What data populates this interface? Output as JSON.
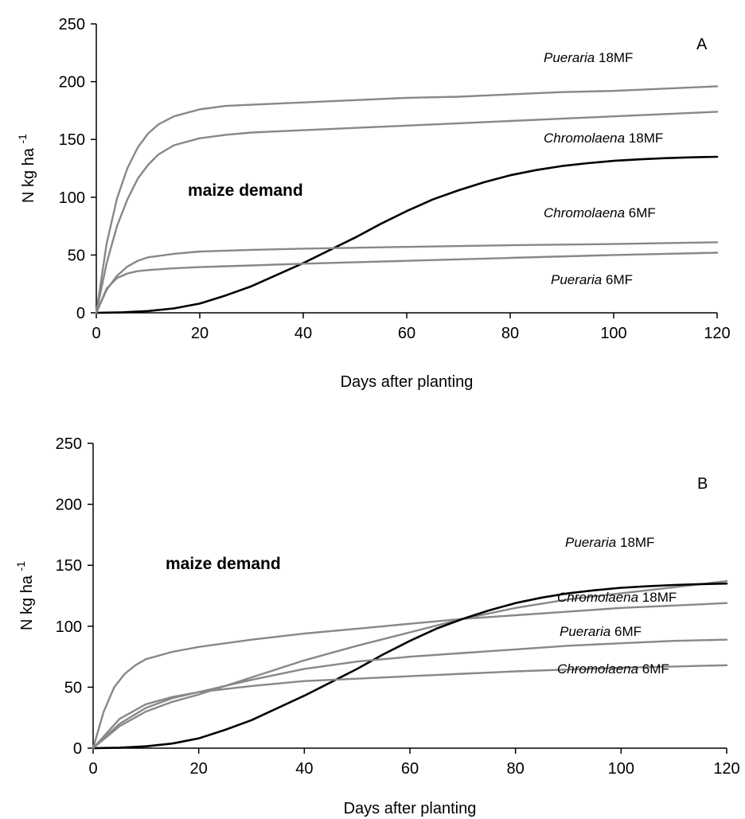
{
  "chart_data": [
    {
      "type": "line",
      "panel_label": "A",
      "xlabel": "Days after planting",
      "ylabel": "N kg ha",
      "ylabel_sup": "-1",
      "xlim": [
        0,
        120
      ],
      "ylim": [
        0,
        250
      ],
      "xticks": [
        0,
        20,
        40,
        60,
        80,
        100,
        120
      ],
      "yticks": [
        0,
        50,
        100,
        150,
        200,
        250
      ],
      "grid": false,
      "series": [
        {
          "name": "Pueraria 18MF",
          "color": "#888888",
          "label_italic": "Pueraria",
          "label_rest": "18MF",
          "x": [
            0,
            2,
            4,
            6,
            8,
            10,
            12,
            15,
            20,
            25,
            30,
            40,
            50,
            60,
            70,
            80,
            90,
            100,
            110,
            120
          ],
          "y": [
            0,
            60,
            99,
            125,
            143,
            155,
            163,
            170,
            176,
            179,
            180,
            182,
            184,
            186,
            187,
            189,
            191,
            192,
            194,
            196
          ]
        },
        {
          "name": "Chromolaena 18MF",
          "color": "#888888",
          "label_italic": "Chromolaena",
          "label_rest": "18MF",
          "x": [
            0,
            2,
            4,
            6,
            8,
            10,
            12,
            15,
            20,
            25,
            30,
            40,
            50,
            60,
            70,
            80,
            90,
            100,
            110,
            120
          ],
          "y": [
            0,
            43,
            75,
            98,
            116,
            128,
            137,
            145,
            151,
            154,
            156,
            158,
            160,
            162,
            164,
            166,
            168,
            170,
            172,
            174
          ]
        },
        {
          "name": "maize demand",
          "color": "#000000",
          "label_bold": "maize demand",
          "x": [
            0,
            5,
            10,
            15,
            20,
            25,
            30,
            35,
            40,
            45,
            50,
            55,
            60,
            65,
            70,
            75,
            80,
            85,
            90,
            95,
            100,
            105,
            110,
            115,
            120
          ],
          "y": [
            0,
            0.4,
            1.5,
            3.8,
            8,
            15,
            23,
            33,
            43,
            54,
            65,
            77,
            88,
            98,
            106,
            113,
            119,
            123.5,
            127,
            129.5,
            131.5,
            132.8,
            133.8,
            134.5,
            135
          ]
        },
        {
          "name": "Chromolaena 6MF",
          "color": "#888888",
          "label_italic": "Chromolaena",
          "label_rest": "6MF",
          "x": [
            0,
            2,
            4,
            6,
            8,
            10,
            15,
            20,
            30,
            40,
            60,
            80,
            100,
            120
          ],
          "y": [
            0,
            20,
            32,
            40,
            45,
            48,
            51,
            53,
            54.5,
            55.5,
            57,
            58.5,
            59.5,
            61
          ]
        },
        {
          "name": "Pueraria 6MF",
          "color": "#888888",
          "label_italic": "Pueraria",
          "label_rest": "6MF",
          "x": [
            0,
            2,
            4,
            6,
            8,
            10,
            15,
            20,
            30,
            40,
            60,
            80,
            100,
            120
          ],
          "y": [
            0,
            21,
            30,
            34,
            36,
            37,
            38.5,
            39.5,
            41,
            42.5,
            45,
            47.5,
            50,
            52
          ]
        }
      ],
      "annotations": {
        "maize_demand": "maize demand"
      }
    },
    {
      "type": "line",
      "panel_label": "B",
      "xlabel": "Days after planting",
      "ylabel": "N kg ha",
      "ylabel_sup": "-1",
      "xlim": [
        0,
        120
      ],
      "ylim": [
        0,
        250
      ],
      "xticks": [
        0,
        20,
        40,
        60,
        80,
        100,
        120
      ],
      "yticks": [
        0,
        50,
        100,
        150,
        200,
        250
      ],
      "grid": false,
      "series": [
        {
          "name": "Pueraria 18MF",
          "color": "#888888",
          "label_italic": "Pueraria",
          "label_rest": "18MF",
          "x": [
            0,
            5,
            10,
            15,
            20,
            25,
            30,
            40,
            50,
            60,
            70,
            80,
            90,
            100,
            110,
            120
          ],
          "y": [
            0,
            18,
            30,
            38,
            44,
            51,
            58,
            72,
            84,
            95,
            106,
            115,
            122,
            127,
            132,
            137
          ]
        },
        {
          "name": "Chromolaena 18MF",
          "color": "#888888",
          "label_italic": "Chromolaena",
          "label_rest": "18MF",
          "x": [
            0,
            2,
            4,
            6,
            8,
            10,
            15,
            20,
            30,
            40,
            50,
            60,
            70,
            80,
            90,
            100,
            110,
            120
          ],
          "y": [
            0,
            30,
            50,
            61,
            68,
            73,
            79,
            83,
            89,
            94,
            98,
            102,
            106,
            109,
            112,
            115,
            117,
            119
          ]
        },
        {
          "name": "maize demand",
          "color": "#000000",
          "label_bold": "maize demand",
          "x": [
            0,
            5,
            10,
            15,
            20,
            25,
            30,
            35,
            40,
            45,
            50,
            55,
            60,
            65,
            70,
            75,
            80,
            85,
            90,
            95,
            100,
            105,
            110,
            115,
            120
          ],
          "y": [
            0,
            0.4,
            1.5,
            3.8,
            8,
            15,
            23,
            33,
            43,
            54,
            65,
            77,
            88,
            98,
            106,
            113,
            119,
            123.5,
            127,
            129.5,
            131.5,
            132.8,
            133.8,
            134.5,
            135
          ]
        },
        {
          "name": "Pueraria 6MF",
          "color": "#888888",
          "label_italic": "Pueraria",
          "label_rest": "6MF",
          "x": [
            0,
            5,
            10,
            15,
            20,
            30,
            40,
            50,
            60,
            70,
            80,
            90,
            100,
            110,
            120
          ],
          "y": [
            0,
            20,
            33,
            41,
            46,
            56,
            65,
            71,
            75,
            78,
            81,
            84,
            86,
            88,
            89
          ]
        },
        {
          "name": "Chromolaena 6MF",
          "color": "#888888",
          "label_italic": "Chromolaena",
          "label_rest": "6MF",
          "x": [
            0,
            5,
            10,
            15,
            20,
            30,
            40,
            50,
            60,
            70,
            80,
            90,
            100,
            110,
            120
          ],
          "y": [
            0,
            24,
            36,
            42,
            46,
            51,
            55,
            57,
            59,
            61,
            63,
            64.5,
            66,
            67,
            68
          ]
        }
      ],
      "annotations": {
        "maize_demand": "maize demand"
      }
    }
  ]
}
